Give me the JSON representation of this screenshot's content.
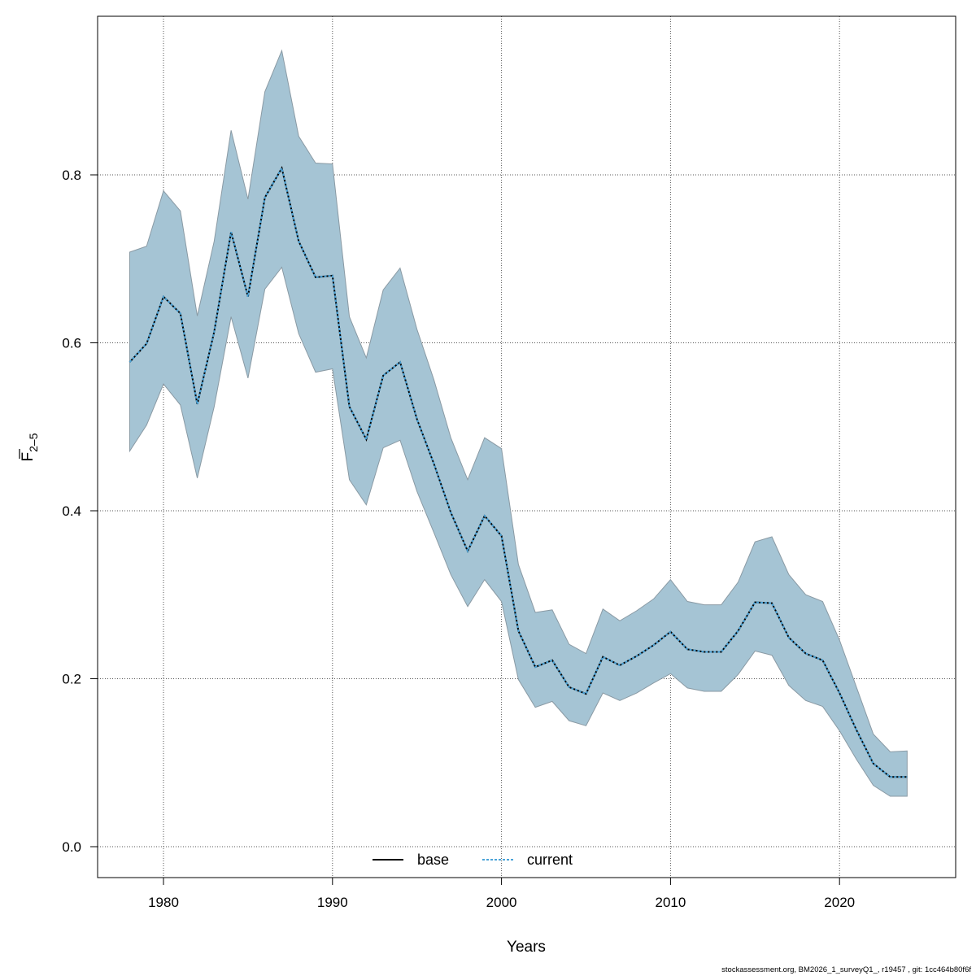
{
  "chart_data": {
    "type": "area",
    "xlabel": "Years",
    "ylabel": "F̅ 2-5",
    "ylabel_main": "F",
    "ylabel_sub": "2–5",
    "xlim": [
      1976,
      2026
    ],
    "ylim": [
      -0.035,
      0.98
    ],
    "xticks": [
      1980,
      1990,
      2000,
      2010,
      2020
    ],
    "yticks": [
      "0.0",
      "0.2",
      "0.4",
      "0.6",
      "0.8"
    ],
    "grid": true,
    "legend_position": "bottom",
    "colors": {
      "band": "#a5c4d4",
      "band_edge": "#8a9aa4",
      "base": "#000000",
      "current": "#4aa3d8"
    },
    "x": [
      1978,
      1979,
      1980,
      1981,
      1982,
      1983,
      1984,
      1985,
      1986,
      1987,
      1988,
      1989,
      1990,
      1991,
      1992,
      1993,
      1994,
      1995,
      1996,
      1997,
      1998,
      1999,
      2000,
      2001,
      2002,
      2003,
      2004,
      2005,
      2006,
      2007,
      2008,
      2009,
      2010,
      2011,
      2012,
      2013,
      2014,
      2015,
      2016,
      2017,
      2018,
      2019,
      2020,
      2021,
      2022,
      2023,
      2024
    ],
    "series": [
      {
        "name": "base",
        "style": "solid",
        "values": [
          0.577,
          0.599,
          0.655,
          0.635,
          0.527,
          0.613,
          0.732,
          0.655,
          0.773,
          0.808,
          0.721,
          0.678,
          0.68,
          0.524,
          0.485,
          0.561,
          0.577,
          0.509,
          0.456,
          0.398,
          0.352,
          0.394,
          0.37,
          0.257,
          0.214,
          0.222,
          0.19,
          0.182,
          0.226,
          0.216,
          0.227,
          0.24,
          0.256,
          0.235,
          0.232,
          0.232,
          0.257,
          0.291,
          0.29,
          0.249,
          0.23,
          0.222,
          0.183,
          0.139,
          0.099,
          0.083,
          0.083
        ]
      },
      {
        "name": "current",
        "style": "dashed",
        "values": [
          0.577,
          0.599,
          0.655,
          0.635,
          0.527,
          0.613,
          0.732,
          0.655,
          0.773,
          0.808,
          0.721,
          0.678,
          0.68,
          0.524,
          0.485,
          0.561,
          0.577,
          0.509,
          0.456,
          0.398,
          0.352,
          0.394,
          0.37,
          0.257,
          0.214,
          0.222,
          0.19,
          0.182,
          0.226,
          0.216,
          0.227,
          0.24,
          0.256,
          0.235,
          0.232,
          0.232,
          0.257,
          0.291,
          0.29,
          0.249,
          0.23,
          0.222,
          0.183,
          0.139,
          0.099,
          0.083,
          0.083
        ]
      }
    ],
    "band": {
      "upper": [
        0.708,
        0.715,
        0.781,
        0.757,
        0.632,
        0.721,
        0.853,
        0.771,
        0.899,
        0.948,
        0.846,
        0.814,
        0.813,
        0.631,
        0.582,
        0.663,
        0.689,
        0.616,
        0.556,
        0.487,
        0.437,
        0.487,
        0.474,
        0.336,
        0.279,
        0.282,
        0.241,
        0.23,
        0.283,
        0.269,
        0.281,
        0.295,
        0.318,
        0.292,
        0.288,
        0.288,
        0.315,
        0.363,
        0.369,
        0.324,
        0.3,
        0.292,
        0.246,
        0.19,
        0.134,
        0.113,
        0.114
      ],
      "lower": [
        0.471,
        0.502,
        0.551,
        0.526,
        0.439,
        0.524,
        0.631,
        0.558,
        0.664,
        0.69,
        0.611,
        0.565,
        0.569,
        0.437,
        0.407,
        0.475,
        0.484,
        0.423,
        0.374,
        0.324,
        0.286,
        0.318,
        0.292,
        0.199,
        0.166,
        0.173,
        0.15,
        0.144,
        0.183,
        0.174,
        0.183,
        0.195,
        0.206,
        0.189,
        0.185,
        0.185,
        0.205,
        0.233,
        0.228,
        0.192,
        0.174,
        0.167,
        0.138,
        0.104,
        0.073,
        0.06,
        0.06
      ]
    }
  },
  "footer": "stockassessment.org, BM2026_1_surveyQ1_, r19457 , git: 1cc464b80f6f"
}
